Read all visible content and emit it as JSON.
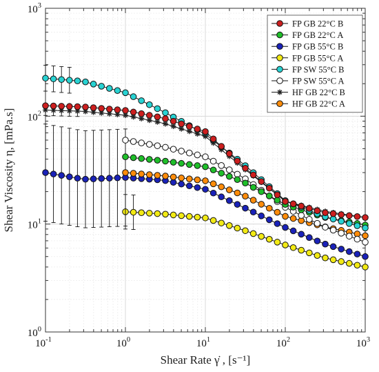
{
  "chart_data": {
    "type": "scatter",
    "xscale": "log",
    "yscale": "log",
    "xlim": [
      0.1,
      1000
    ],
    "ylim": [
      1,
      1000
    ],
    "grid": true,
    "legend_position": "top-right",
    "xlabel": "Shear Rate γ̇ , [s⁻¹]",
    "ylabel": "Shear Viscosity η, [mPa.s]",
    "x_ticks": [
      {
        "value": 0.1,
        "base": "10",
        "exp": "-1"
      },
      {
        "value": 1,
        "base": "10",
        "exp": "0"
      },
      {
        "value": 10,
        "base": "10",
        "exp": "1"
      },
      {
        "value": 100,
        "base": "10",
        "exp": "2"
      },
      {
        "value": 1000,
        "base": "10",
        "exp": "3"
      }
    ],
    "y_ticks": [
      {
        "value": 1,
        "base": "10",
        "exp": "0"
      },
      {
        "value": 10,
        "base": "10",
        "exp": "1"
      },
      {
        "value": 100,
        "base": "10",
        "exp": "2"
      },
      {
        "value": 1000,
        "base": "10",
        "exp": "3"
      }
    ],
    "series": [
      {
        "name": "FP GB 22°C B",
        "marker": "circle",
        "fill": "#cc1f1f",
        "x_start": 0.1,
        "x_anchor": [
          0.1,
          0.3,
          1,
          3,
          10,
          30,
          100,
          300,
          1000
        ],
        "y_anchor": [
          125,
          122,
          113,
          96,
          72,
          34,
          16.2,
          12.8,
          11.5
        ]
      },
      {
        "name": "FP GB 22°C A",
        "marker": "circle",
        "fill": "#1fbf2a",
        "x_start": 1,
        "x_anchor": [
          1,
          3,
          10,
          30,
          100,
          300,
          1000
        ],
        "y_anchor": [
          42,
          38.5,
          34,
          24.5,
          15.2,
          11.6,
          9.8
        ]
      },
      {
        "name": "FP GB 55°C B",
        "marker": "circle",
        "fill": "#1a22b8",
        "x_start": 0.1,
        "x_anchor": [
          0.1,
          0.3,
          1,
          3,
          10,
          30,
          100,
          300,
          1000
        ],
        "y_anchor": [
          30,
          26,
          27,
          25.5,
          21,
          14.3,
          9.3,
          6.6,
          5.0
        ],
        "error": [
          {
            "x_max": 1.0,
            "y": 0.45
          }
        ]
      },
      {
        "name": "FP GB 55°C A",
        "marker": "circle",
        "fill": "#f2ea14",
        "x_start": 1,
        "x_anchor": [
          1,
          3,
          10,
          30,
          100,
          300,
          1000
        ],
        "y_anchor": [
          13,
          12.4,
          11.4,
          8.8,
          6.4,
          4.9,
          4.0
        ],
        "error": [
          {
            "x_max": 1.5,
            "y": 0.16
          }
        ]
      },
      {
        "name": "FP SW 55°C B",
        "marker": "circle",
        "fill": "#28d2d2",
        "x_start": 0.1,
        "x_anchor": [
          0.1,
          0.3,
          1,
          3,
          10,
          30,
          100,
          300,
          1000
        ],
        "y_anchor": [
          225,
          210,
          165,
          110,
          68,
          36,
          16.5,
          11.8,
          9.2
        ],
        "error": [
          {
            "x_max": 0.2,
            "y": 0.12
          }
        ]
      },
      {
        "name": "FP SW 55°C A",
        "marker": "circle",
        "fill": "#ffffff",
        "x_start": 1,
        "x_anchor": [
          1,
          3,
          10,
          30,
          100,
          300,
          1000
        ],
        "y_anchor": [
          60,
          52,
          42,
          27,
          14.3,
          9.5,
          6.8
        ]
      },
      {
        "name": "HF GB 22°C B",
        "marker": "star",
        "fill": "#222222",
        "x_start": 0.1,
        "x_anchor": [
          0.1,
          0.3,
          1,
          3,
          10,
          30,
          100,
          300,
          1000
        ],
        "y_anchor": [
          114,
          111,
          102,
          86,
          65,
          33,
          16.3,
          13.2,
          11.5
        ],
        "error": [
          {
            "x_max": 0.3,
            "y": 0.05
          }
        ]
      },
      {
        "name": "HF GB 22°C A",
        "marker": "circle",
        "fill": "#ff8c0a",
        "x_start": 1,
        "x_anchor": [
          1,
          3,
          10,
          30,
          100,
          300,
          1000
        ],
        "y_anchor": [
          30,
          28,
          25.2,
          18.5,
          11.8,
          9.5,
          7.8
        ]
      }
    ]
  }
}
